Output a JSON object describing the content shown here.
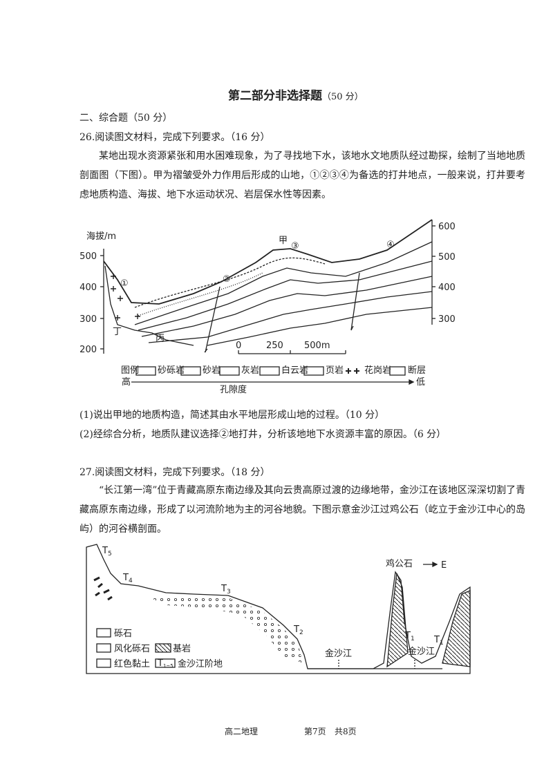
{
  "header": {
    "title": "第二部分非选择题",
    "score": "（50 分）"
  },
  "section": "二、综合题（50 分）",
  "q26": {
    "heading": "26.阅读图文材料，完成下列要求。（16 分）",
    "paragraph": "某地出现水资源紧张和用水困难现象，为了寻找地下水，该地水文地质队经过勘探，绘制了当地地质剖面图（下图）。甲为褶皱受外力作用后形成的山地，①②③④为备选的打井地点，一般来说，打井要考虑地质构造、海拔、地下水运动状况、岩层保水性等因素。",
    "figure": {
      "axis_label": "海拔/m",
      "left_ticks": [
        500,
        400,
        300,
        200
      ],
      "right_ticks": [
        600,
        500,
        400,
        300
      ],
      "points": [
        "①",
        "②",
        "③",
        "④"
      ],
      "jia": "甲",
      "ding": "丁",
      "bing": "丙",
      "scale": [
        "0",
        "250",
        "500m"
      ],
      "legend_title": "图例",
      "legend": [
        "砂砾岩",
        "砂岩",
        "灰岩",
        "白云岩",
        "页岩",
        "花岗岩",
        "断层"
      ],
      "arrow_high": "高",
      "arrow_low": "低",
      "arrow_label": "孔隙度"
    },
    "questions": [
      "(1)说出甲地的地质构造，简述其由水平地层形成山地的过程。（10 分）",
      "(2)经综合分析，地质队建议选择②地打井，分析该地地下水资源丰富的原因。（6 分）"
    ]
  },
  "q27": {
    "heading": "27.阅读图文材料，完成下列要求。（18 分）",
    "paragraph": "“长江第一湾”位于青藏高原东南边缘及其向云贵高原过渡的边缘地带，金沙江在该地区深深切割了青藏高原东南边缘，形成了以河流阶地为主的河谷地貌。下图示意金沙江过鸡公石（屹立于金沙江中心的岛屿）的河谷横剖面。",
    "figure": {
      "terraces": [
        {
          "main": "T",
          "sub": "5"
        },
        {
          "main": "T",
          "sub": "4"
        },
        {
          "main": "T",
          "sub": "3"
        },
        {
          "main": "T",
          "sub": "2"
        },
        {
          "main": "T",
          "sub": "1"
        },
        {
          "main": "T",
          "sub": "1"
        }
      ],
      "rock": "鸡公石",
      "direction": "E",
      "river": [
        "金沙江",
        "金沙江"
      ],
      "legend": [
        "砾石",
        "风化砾石",
        "基岩",
        "红色黏土"
      ],
      "legend_terrace": {
        "main": "T",
        "sub": "1~5"
      },
      "legend_terrace_text": "金沙江阶地"
    }
  },
  "footer": {
    "subject": "高二地理",
    "page": "第7页",
    "total": "共8页"
  }
}
